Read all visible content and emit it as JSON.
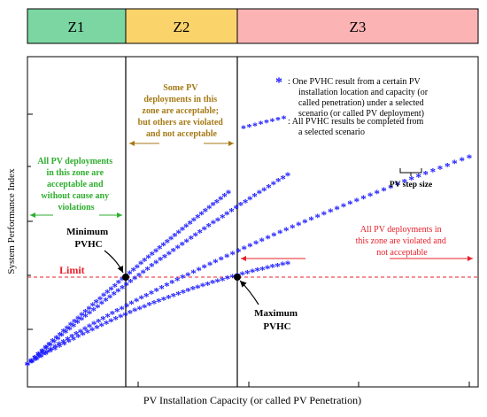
{
  "zones": [
    {
      "label": "Z1",
      "color": "#7bd6a2"
    },
    {
      "label": "Z2",
      "color": "#fbd36b"
    },
    {
      "label": "Z3",
      "color": "#fbb3b3"
    }
  ],
  "axes": {
    "ylabel": "System Performance Index",
    "xlabel": "PV Installation Capacity (or called PV Penetration)"
  },
  "limit": {
    "label": "Limit",
    "color": "#e8202a"
  },
  "legend": {
    "item1_lines": [
      ": One PVHC result from a certain PV",
      "installation location and capacity (or",
      "called penetration) under a selected",
      "scenario (or called PV deployment)"
    ],
    "item2_lines": [
      ": All PVHC results be completed from",
      "a selected scenario"
    ]
  },
  "annotations": {
    "z1_note": {
      "lines": [
        "All PV deployments",
        "in this zone are",
        "acceptable and",
        "without cause any",
        "violations"
      ],
      "color": "#2eae2e"
    },
    "z2_note": {
      "lines": [
        "Some PV",
        "deployments in this",
        "zone are acceptable;",
        "but others are violated",
        "and not acceptable"
      ],
      "color": "#a57a16"
    },
    "z3_note": {
      "lines": [
        "All PV deployments in",
        "this zone are violated and",
        "not acceptable"
      ],
      "color": "#e8202a"
    },
    "min_pvhc": [
      "Minimum",
      "PVHC"
    ],
    "max_pvhc": [
      "Maximum",
      "PVHC"
    ],
    "step_size": "PV step size"
  },
  "colors": {
    "marker": "#1a1aff",
    "axis": "#000000"
  }
}
